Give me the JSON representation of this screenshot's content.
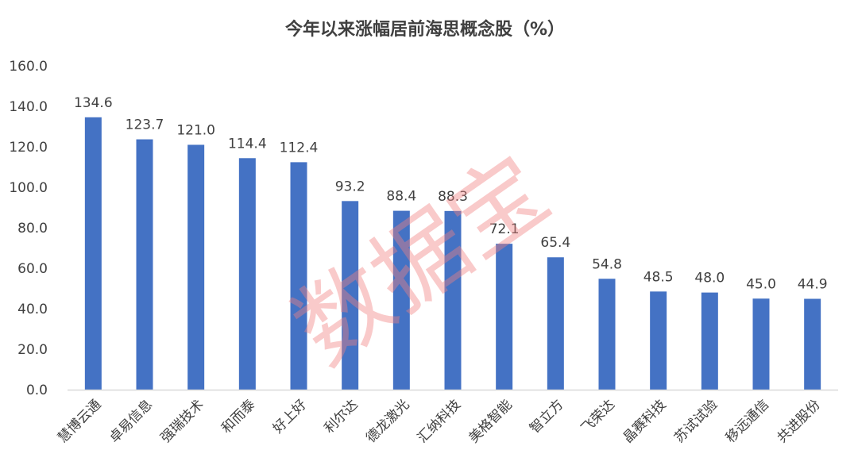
{
  "colors": {
    "bar": "#4472C4",
    "axis": "#D9D9D9",
    "text": "#404040",
    "watermark": "#F08080"
  },
  "watermark": "数据宝",
  "chart_data": {
    "type": "bar",
    "title": "今年以来涨幅居前海思概念股（%）",
    "xlabel": "",
    "ylabel": "",
    "ylim": [
      0,
      160
    ],
    "yticks": [
      "0.0",
      "20.0",
      "40.0",
      "60.0",
      "80.0",
      "100.0",
      "120.0",
      "140.0",
      "160.0"
    ],
    "grid": false,
    "categories": [
      "慧博云通",
      "卓易信息",
      "强瑞技术",
      "和而泰",
      "好上好",
      "利尔达",
      "德龙激光",
      "汇纳科技",
      "美格智能",
      "智立方",
      "飞荣达",
      "晶赛科技",
      "苏试试验",
      "移远通信",
      "共进股份"
    ],
    "values": [
      134.6,
      123.7,
      121.0,
      114.4,
      112.4,
      93.2,
      88.4,
      88.3,
      72.1,
      65.4,
      54.8,
      48.5,
      48.0,
      45.0,
      44.9
    ],
    "labels": [
      "134.6",
      "123.7",
      "121.0",
      "114.4",
      "112.4",
      "93.2",
      "88.4",
      "88.3",
      "72.1",
      "65.4",
      "54.8",
      "48.5",
      "48.0",
      "45.0",
      "44.9"
    ]
  }
}
